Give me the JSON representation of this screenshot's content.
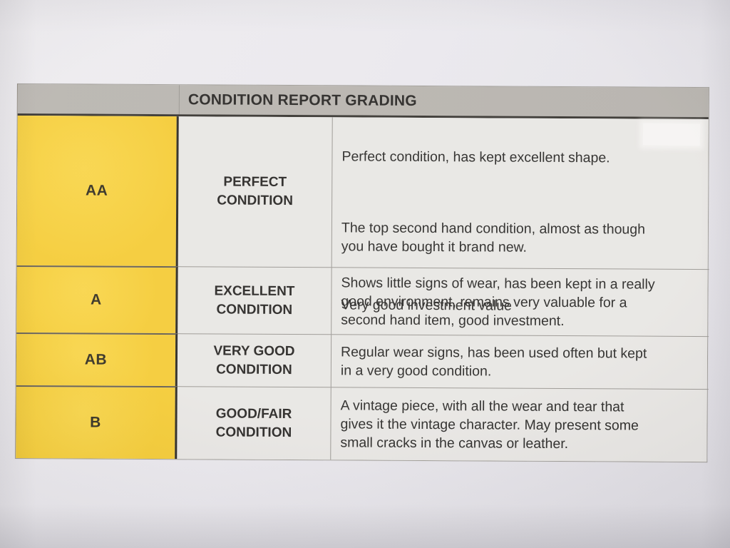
{
  "colors": {
    "header_bg": "#b6b2ac",
    "grade_bg": "#f4c92c",
    "cell_bg": "#e7e5e2",
    "text": "#1f1d1b"
  },
  "table": {
    "title": "CONDITION REPORT GRADING",
    "rows": [
      {
        "grade": "AA",
        "condition": "PERFECT\nCONDITION",
        "description_paragraphs": [
          "Perfect condition, has kept excellent shape.",
          "The top second hand condition, almost as though\nyou have bought it brand new.",
          "Very good investment value"
        ]
      },
      {
        "grade": "A",
        "condition": "EXCELLENT\nCONDITION",
        "description": "Shows little signs of wear, has been kept in a really\ngood environment, remains very valuable for a\nsecond hand item, good investment."
      },
      {
        "grade": "AB",
        "condition": "VERY GOOD\nCONDITION",
        "description": "Regular wear signs, has been used often but kept\nin a very good condition."
      },
      {
        "grade": "B",
        "condition": "GOOD/FAIR\nCONDITION",
        "description": "A vintage piece, with all the wear and tear that\ngives it the vintage character. May present some\nsmall cracks in the canvas or leather."
      }
    ]
  }
}
